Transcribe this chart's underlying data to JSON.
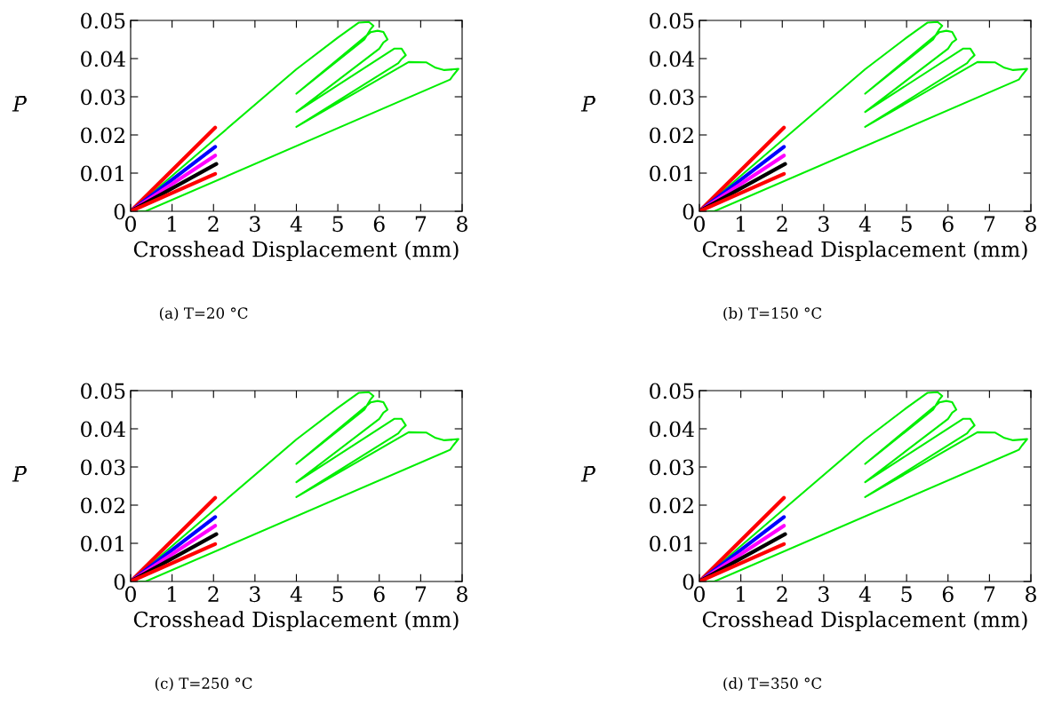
{
  "chart_data": [
    {
      "type": "line",
      "annotations": [
        "(a) T=20 °C"
      ],
      "xlabel": "Crosshead Displacement (mm)",
      "ylabel": "P̄",
      "xlim": [
        0,
        8
      ],
      "xticks": [
        0,
        1,
        2,
        3,
        4,
        5,
        6,
        7,
        8
      ],
      "ylim": [
        0,
        0.05
      ],
      "yticks": [
        0,
        0.01,
        0.02,
        0.03,
        0.04,
        0.05
      ],
      "series": [
        {
          "color": "#00ee00",
          "x": [
            0,
            2,
            4,
            5,
            5.5,
            5.75,
            5.86,
            5.79,
            5.64,
            4,
            5.79,
            5.96,
            6.1,
            6.2,
            6.1,
            6.0,
            4,
            6.36,
            6.54,
            6.64,
            6.54,
            6.46,
            4,
            6.71,
            7.14,
            7.36,
            7.57,
            7.91,
            7.79,
            7.71,
            0.36,
            0.2
          ],
          "values": [
            0,
            0.0186,
            0.0372,
            0.0455,
            0.0494,
            0.0496,
            0.0486,
            0.0477,
            0.045,
            0.0308,
            0.0469,
            0.0473,
            0.047,
            0.045,
            0.0442,
            0.0426,
            0.026,
            0.0426,
            0.0426,
            0.0409,
            0.0399,
            0.0388,
            0.0221,
            0.0391,
            0.039,
            0.0376,
            0.037,
            0.0373,
            0.0357,
            0.0345,
            0,
            0
          ]
        },
        {
          "color": "#ff0000",
          "x": [
            0,
            2.04
          ],
          "values": [
            0,
            0.0219
          ]
        },
        {
          "color": "#0000ff",
          "x": [
            0,
            2.04
          ],
          "values": [
            0,
            0.0169
          ]
        },
        {
          "color": "#ff00ff",
          "x": [
            0,
            2.04
          ],
          "values": [
            0,
            0.0146
          ]
        },
        {
          "color": "#000000",
          "x": [
            0,
            2.07
          ],
          "values": [
            0,
            0.0124
          ]
        },
        {
          "color": "#ff0000",
          "x": [
            0,
            2.04
          ],
          "values": [
            0,
            0.0098
          ]
        }
      ]
    },
    {
      "type": "line",
      "annotations": [
        "(b) T=150 °C"
      ],
      "xlabel": "Crosshead Displacement (mm)",
      "ylabel": "P̄",
      "xlim": [
        0,
        8
      ],
      "xticks": [
        0,
        1,
        2,
        3,
        4,
        5,
        6,
        7,
        8
      ],
      "ylim": [
        0,
        0.05
      ],
      "yticks": [
        0,
        0.01,
        0.02,
        0.03,
        0.04,
        0.05
      ],
      "series": [
        {
          "color": "#00ee00",
          "x": [
            0,
            2,
            4,
            5,
            5.5,
            5.75,
            5.86,
            5.79,
            5.64,
            4,
            5.79,
            5.96,
            6.1,
            6.2,
            6.1,
            6.0,
            4,
            6.36,
            6.54,
            6.64,
            6.54,
            6.46,
            4,
            6.71,
            7.14,
            7.36,
            7.57,
            7.91,
            7.79,
            7.71,
            0.36,
            0.2
          ],
          "values": [
            0,
            0.0186,
            0.0372,
            0.0455,
            0.0494,
            0.0496,
            0.0486,
            0.0477,
            0.045,
            0.0308,
            0.0469,
            0.0473,
            0.047,
            0.045,
            0.0442,
            0.0426,
            0.026,
            0.0426,
            0.0426,
            0.0409,
            0.0399,
            0.0388,
            0.0221,
            0.0391,
            0.039,
            0.0376,
            0.037,
            0.0373,
            0.0357,
            0.0345,
            0,
            0
          ]
        },
        {
          "color": "#ff0000",
          "x": [
            0,
            2.04
          ],
          "values": [
            0,
            0.0219
          ]
        },
        {
          "color": "#0000ff",
          "x": [
            0,
            2.04
          ],
          "values": [
            0,
            0.0169
          ]
        },
        {
          "color": "#ff00ff",
          "x": [
            0,
            2.04
          ],
          "values": [
            0,
            0.0146
          ]
        },
        {
          "color": "#000000",
          "x": [
            0,
            2.07
          ],
          "values": [
            0,
            0.0124
          ]
        },
        {
          "color": "#ff0000",
          "x": [
            0,
            2.04
          ],
          "values": [
            0,
            0.0098
          ]
        }
      ]
    },
    {
      "type": "line",
      "annotations": [
        "(c) T=250 °C"
      ],
      "xlabel": "Crosshead Displacement (mm)",
      "ylabel": "P̄",
      "xlim": [
        0,
        8
      ],
      "xticks": [
        0,
        1,
        2,
        3,
        4,
        5,
        6,
        7,
        8
      ],
      "ylim": [
        0,
        0.05
      ],
      "yticks": [
        0,
        0.01,
        0.02,
        0.03,
        0.04,
        0.05
      ],
      "series": [
        {
          "color": "#00ee00",
          "x": [
            0,
            2,
            4,
            5,
            5.5,
            5.75,
            5.86,
            5.79,
            5.64,
            4,
            5.79,
            5.96,
            6.1,
            6.2,
            6.1,
            6.0,
            4,
            6.36,
            6.54,
            6.64,
            6.54,
            6.46,
            4,
            6.71,
            7.14,
            7.36,
            7.57,
            7.91,
            7.79,
            7.71,
            0.36,
            0.2
          ],
          "values": [
            0,
            0.0186,
            0.0372,
            0.0455,
            0.0494,
            0.0496,
            0.0486,
            0.0477,
            0.045,
            0.0308,
            0.0469,
            0.0473,
            0.047,
            0.045,
            0.0442,
            0.0426,
            0.026,
            0.0426,
            0.0426,
            0.0409,
            0.0399,
            0.0388,
            0.0221,
            0.0391,
            0.039,
            0.0376,
            0.037,
            0.0373,
            0.0357,
            0.0345,
            0,
            0
          ]
        },
        {
          "color": "#ff0000",
          "x": [
            0,
            2.04
          ],
          "values": [
            0,
            0.0219
          ]
        },
        {
          "color": "#0000ff",
          "x": [
            0,
            2.04
          ],
          "values": [
            0,
            0.0169
          ]
        },
        {
          "color": "#ff00ff",
          "x": [
            0,
            2.04
          ],
          "values": [
            0,
            0.0146
          ]
        },
        {
          "color": "#000000",
          "x": [
            0,
            2.07
          ],
          "values": [
            0,
            0.0124
          ]
        },
        {
          "color": "#ff0000",
          "x": [
            0,
            2.04
          ],
          "values": [
            0,
            0.0098
          ]
        }
      ]
    },
    {
      "type": "line",
      "annotations": [
        "(d) T=350 °C"
      ],
      "xlabel": "Crosshead Displacement (mm)",
      "ylabel": "P̄",
      "xlim": [
        0,
        8
      ],
      "xticks": [
        0,
        1,
        2,
        3,
        4,
        5,
        6,
        7,
        8
      ],
      "ylim": [
        0,
        0.05
      ],
      "yticks": [
        0,
        0.01,
        0.02,
        0.03,
        0.04,
        0.05
      ],
      "series": [
        {
          "color": "#00ee00",
          "x": [
            0,
            2,
            4,
            5,
            5.5,
            5.75,
            5.86,
            5.79,
            5.64,
            4,
            5.79,
            5.96,
            6.1,
            6.2,
            6.1,
            6.0,
            4,
            6.36,
            6.54,
            6.64,
            6.54,
            6.46,
            4,
            6.71,
            7.14,
            7.36,
            7.57,
            7.91,
            7.79,
            7.71,
            0.36,
            0.2
          ],
          "values": [
            0,
            0.0186,
            0.0372,
            0.0455,
            0.0494,
            0.0496,
            0.0486,
            0.0477,
            0.045,
            0.0308,
            0.0469,
            0.0473,
            0.047,
            0.045,
            0.0442,
            0.0426,
            0.026,
            0.0426,
            0.0426,
            0.0409,
            0.0399,
            0.0388,
            0.0221,
            0.0391,
            0.039,
            0.0376,
            0.037,
            0.0373,
            0.0357,
            0.0345,
            0,
            0
          ]
        },
        {
          "color": "#ff0000",
          "x": [
            0,
            2.04
          ],
          "values": [
            0,
            0.0219
          ]
        },
        {
          "color": "#0000ff",
          "x": [
            0,
            2.04
          ],
          "values": [
            0,
            0.0169
          ]
        },
        {
          "color": "#ff00ff",
          "x": [
            0,
            2.04
          ],
          "values": [
            0,
            0.0146
          ]
        },
        {
          "color": "#000000",
          "x": [
            0,
            2.07
          ],
          "values": [
            0,
            0.0124
          ]
        },
        {
          "color": "#ff0000",
          "x": [
            0,
            2.04
          ],
          "values": [
            0,
            0.0098
          ]
        }
      ]
    }
  ]
}
